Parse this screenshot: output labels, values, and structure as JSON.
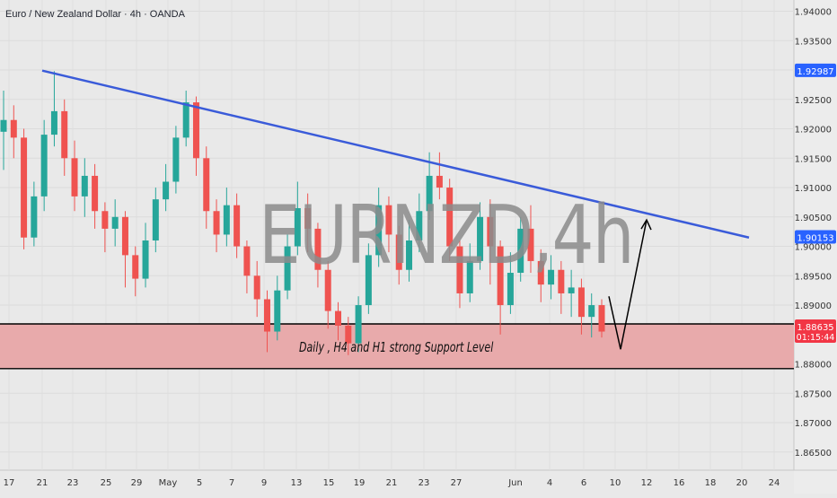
{
  "header": {
    "title": "Euro / New Zealand Dollar · 4h · OANDA"
  },
  "watermark": "EURNZD,4h",
  "chart_data": {
    "type": "candlestick",
    "symbol": "EURNZD",
    "timeframe": "4h",
    "ylim": [
      1.861,
      1.941
    ],
    "yticks": [
      1.865,
      1.87,
      1.875,
      1.88,
      1.885,
      1.89,
      1.895,
      1.9,
      1.905,
      1.91,
      1.915,
      1.92,
      1.925,
      1.93,
      1.935,
      1.94
    ],
    "ytick_labels": [
      "1.86500",
      "1.87000",
      "1.87500",
      "1.88000",
      "1.88500",
      "1.89000",
      "1.89500",
      "1.90000",
      "1.90500",
      "1.91000",
      "1.91500",
      "1.92000",
      "1.92500",
      "1.93000",
      "1.93500",
      "1.94000"
    ],
    "xtick_labels": [
      "17",
      "21",
      "23",
      "25",
      "29",
      "May",
      "5",
      "7",
      "9",
      "13",
      "15",
      "19",
      "21",
      "23",
      "27",
      "Jun",
      "4",
      "6",
      "10",
      "12",
      "16",
      "18",
      "20",
      "24"
    ],
    "price_line": {
      "label": "1.88635",
      "countdown": "01:15:44",
      "color": "#f23645"
    },
    "trendline_value_label": {
      "label": "1.90153",
      "color": "#2962ff"
    },
    "top_level_label": {
      "label": "1.92987",
      "color": "#2962ff"
    },
    "trendline": {
      "color": "#3a5bd9",
      "start": {
        "xtick": "21",
        "price": 1.9299
      },
      "end": {
        "xtick": "20",
        "price": 1.9015
      }
    },
    "support_zone": {
      "top": 1.8868,
      "bottom": 1.8792,
      "label": "Daily , H4 and H1 strong Support Level",
      "fill": "#e8a7a8",
      "border": "#000000"
    },
    "projection_arrow": {
      "color": "#000000",
      "points": [
        {
          "xtick": "6",
          "price": 1.8915,
          "note": "start"
        },
        {
          "xtick": "10",
          "price": 1.8825,
          "note": "low"
        },
        {
          "xtick": "12",
          "price": 1.9045,
          "note": "target"
        }
      ]
    },
    "candles_approx": [
      {
        "o": 1.9195,
        "c": 1.9215,
        "h": 1.9265,
        "l": 1.913
      },
      {
        "o": 1.9215,
        "c": 1.9185,
        "h": 1.924,
        "l": 1.915
      },
      {
        "o": 1.9185,
        "c": 1.9015,
        "h": 1.92,
        "l": 1.8995
      },
      {
        "o": 1.9015,
        "c": 1.9085,
        "h": 1.911,
        "l": 1.9
      },
      {
        "o": 1.9085,
        "c": 1.919,
        "h": 1.9215,
        "l": 1.906
      },
      {
        "o": 1.919,
        "c": 1.923,
        "h": 1.9298,
        "l": 1.917
      },
      {
        "o": 1.923,
        "c": 1.915,
        "h": 1.925,
        "l": 1.912
      },
      {
        "o": 1.915,
        "c": 1.9085,
        "h": 1.918,
        "l": 1.906
      },
      {
        "o": 1.9085,
        "c": 1.912,
        "h": 1.915,
        "l": 1.905
      },
      {
        "o": 1.912,
        "c": 1.906,
        "h": 1.914,
        "l": 1.903
      },
      {
        "o": 1.906,
        "c": 1.903,
        "h": 1.9075,
        "l": 1.899
      },
      {
        "o": 1.903,
        "c": 1.905,
        "h": 1.908,
        "l": 1.9
      },
      {
        "o": 1.905,
        "c": 1.8985,
        "h": 1.906,
        "l": 1.893
      },
      {
        "o": 1.8985,
        "c": 1.8945,
        "h": 1.9,
        "l": 1.8915
      },
      {
        "o": 1.8945,
        "c": 1.901,
        "h": 1.904,
        "l": 1.893
      },
      {
        "o": 1.901,
        "c": 1.908,
        "h": 1.91,
        "l": 1.899
      },
      {
        "o": 1.908,
        "c": 1.911,
        "h": 1.914,
        "l": 1.906
      },
      {
        "o": 1.911,
        "c": 1.9185,
        "h": 1.9205,
        "l": 1.909
      },
      {
        "o": 1.9185,
        "c": 1.9245,
        "h": 1.9265,
        "l": 1.917
      },
      {
        "o": 1.9245,
        "c": 1.915,
        "h": 1.9255,
        "l": 1.912
      },
      {
        "o": 1.915,
        "c": 1.906,
        "h": 1.917,
        "l": 1.903
      },
      {
        "o": 1.906,
        "c": 1.902,
        "h": 1.908,
        "l": 1.899
      },
      {
        "o": 1.902,
        "c": 1.907,
        "h": 1.91,
        "l": 1.9
      },
      {
        "o": 1.907,
        "c": 1.9,
        "h": 1.909,
        "l": 1.898
      },
      {
        "o": 1.9,
        "c": 1.895,
        "h": 1.901,
        "l": 1.892
      },
      {
        "o": 1.895,
        "c": 1.891,
        "h": 1.8975,
        "l": 1.888
      },
      {
        "o": 1.891,
        "c": 1.8855,
        "h": 1.8925,
        "l": 1.882
      },
      {
        "o": 1.8855,
        "c": 1.8925,
        "h": 1.895,
        "l": 1.884
      },
      {
        "o": 1.8925,
        "c": 1.9,
        "h": 1.902,
        "l": 1.891
      },
      {
        "o": 1.9,
        "c": 1.9065,
        "h": 1.911,
        "l": 1.8985
      },
      {
        "o": 1.9065,
        "c": 1.903,
        "h": 1.909,
        "l": 1.899
      },
      {
        "o": 1.903,
        "c": 1.896,
        "h": 1.904,
        "l": 1.893
      },
      {
        "o": 1.896,
        "c": 1.889,
        "h": 1.8975,
        "l": 1.886
      },
      {
        "o": 1.889,
        "c": 1.8865,
        "h": 1.8905,
        "l": 1.884
      },
      {
        "o": 1.8865,
        "c": 1.8835,
        "h": 1.888,
        "l": 1.8815
      },
      {
        "o": 1.8835,
        "c": 1.89,
        "h": 1.8915,
        "l": 1.882
      },
      {
        "o": 1.89,
        "c": 1.8985,
        "h": 1.9005,
        "l": 1.8885
      },
      {
        "o": 1.8985,
        "c": 1.907,
        "h": 1.91,
        "l": 1.8965
      },
      {
        "o": 1.907,
        "c": 1.902,
        "h": 1.9085,
        "l": 1.899
      },
      {
        "o": 1.902,
        "c": 1.896,
        "h": 1.9035,
        "l": 1.8935
      },
      {
        "o": 1.896,
        "c": 1.901,
        "h": 1.9045,
        "l": 1.894
      },
      {
        "o": 1.901,
        "c": 1.906,
        "h": 1.909,
        "l": 1.899
      },
      {
        "o": 1.906,
        "c": 1.912,
        "h": 1.916,
        "l": 1.9045
      },
      {
        "o": 1.912,
        "c": 1.91,
        "h": 1.916,
        "l": 1.908
      },
      {
        "o": 1.91,
        "c": 1.9,
        "h": 1.9115,
        "l": 1.8975
      },
      {
        "o": 1.9,
        "c": 1.892,
        "h": 1.901,
        "l": 1.8895
      },
      {
        "o": 1.892,
        "c": 1.8975,
        "h": 1.9005,
        "l": 1.8905
      },
      {
        "o": 1.8975,
        "c": 1.905,
        "h": 1.9075,
        "l": 1.896
      },
      {
        "o": 1.905,
        "c": 1.9,
        "h": 1.908,
        "l": 1.8935
      },
      {
        "o": 1.9,
        "c": 1.89,
        "h": 1.901,
        "l": 1.885
      },
      {
        "o": 1.89,
        "c": 1.8955,
        "h": 1.899,
        "l": 1.8885
      },
      {
        "o": 1.8955,
        "c": 1.903,
        "h": 1.905,
        "l": 1.894
      },
      {
        "o": 1.903,
        "c": 1.8975,
        "h": 1.907,
        "l": 1.8955
      },
      {
        "o": 1.8975,
        "c": 1.8935,
        "h": 1.8995,
        "l": 1.8905
      },
      {
        "o": 1.8935,
        "c": 1.896,
        "h": 1.8985,
        "l": 1.891
      },
      {
        "o": 1.896,
        "c": 1.892,
        "h": 1.8975,
        "l": 1.8885
      },
      {
        "o": 1.892,
        "c": 1.893,
        "h": 1.896,
        "l": 1.888
      },
      {
        "o": 1.893,
        "c": 1.888,
        "h": 1.8945,
        "l": 1.885
      },
      {
        "o": 1.888,
        "c": 1.89,
        "h": 1.892,
        "l": 1.8845
      },
      {
        "o": 1.89,
        "c": 1.8855,
        "h": 1.891,
        "l": 1.8845
      }
    ]
  }
}
